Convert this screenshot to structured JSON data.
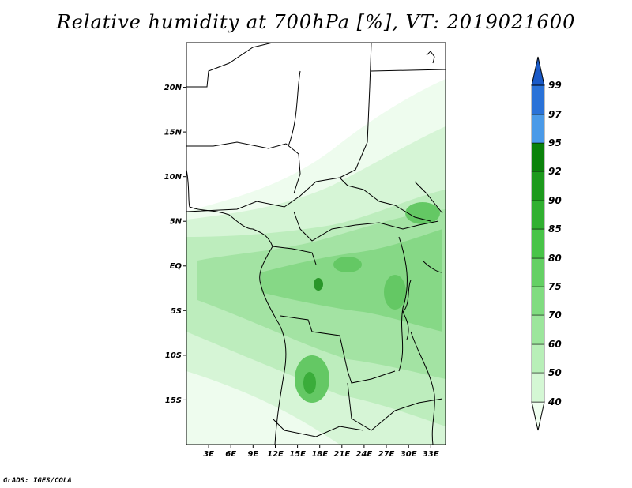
{
  "title": "Relative humidity at 700hPa [%], VT: 2019021600",
  "credit": "GrADS: IGES/COLA",
  "map": {
    "lon_range": [
      0,
      35
    ],
    "lat_range": [
      -20,
      25
    ],
    "x_ticks": [
      "3E",
      "6E",
      "9E",
      "12E",
      "15E",
      "18E",
      "21E",
      "24E",
      "27E",
      "30E",
      "33E"
    ],
    "y_ticks": [
      "20N",
      "15N",
      "10N",
      "5N",
      "EQ",
      "5S",
      "10S",
      "15S"
    ]
  },
  "colorbar": {
    "levels": [
      "40",
      "50",
      "60",
      "70",
      "75",
      "80",
      "85",
      "90",
      "92",
      "95",
      "97",
      "99"
    ],
    "colors": [
      "#f0fff0",
      "#d4f7d4",
      "#b8efb8",
      "#9ce69c",
      "#80dc80",
      "#64d064",
      "#48c448",
      "#30b030",
      "#1c9a1c",
      "#0a820a",
      "#4a9ae8",
      "#2a72d8",
      "#1a5ac8"
    ]
  }
}
